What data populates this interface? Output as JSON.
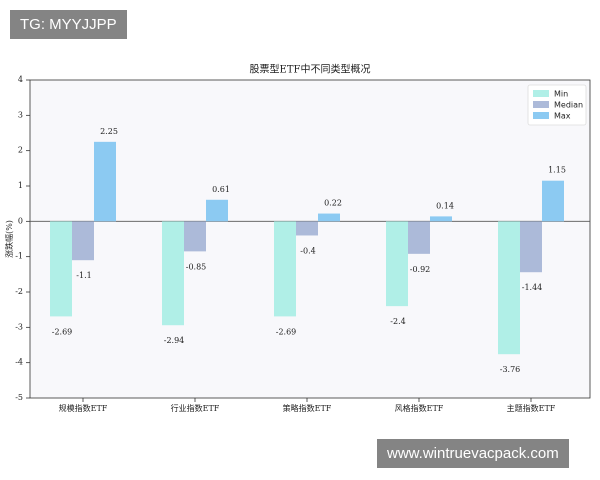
{
  "chart_data": {
    "type": "bar",
    "title": "股票型ETF中不同类型概况",
    "y_label": "涨跌幅(%)",
    "categories": [
      "规模指数ETF",
      "行业指数ETF",
      "策略指数ETF",
      "风格指数ETF",
      "主题指数ETF"
    ],
    "series": [
      {
        "name": "Min",
        "color": "#b0efe7",
        "values": [
          -2.69,
          -2.94,
          -2.69,
          -2.4,
          -3.76
        ]
      },
      {
        "name": "Median",
        "color": "#acbad9",
        "values": [
          -1.1,
          -0.85,
          -0.4,
          -0.92,
          -1.44
        ]
      },
      {
        "name": "Max",
        "color": "#8ccaf2",
        "values": [
          2.25,
          0.61,
          0.22,
          0.14,
          1.15
        ]
      }
    ],
    "ylim": [
      -5,
      4
    ],
    "yticks": [
      -5,
      -4,
      -3,
      -2,
      -1,
      0,
      1,
      2,
      3,
      4
    ],
    "legend": "upper right"
  },
  "watermarks": [
    "TG: MYYJJPP",
    "www.wintruevacpack.com"
  ]
}
